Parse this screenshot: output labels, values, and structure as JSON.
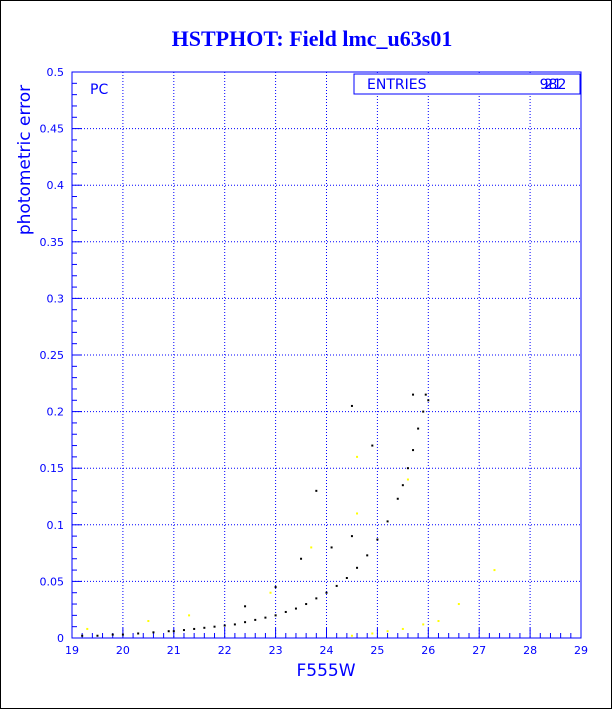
{
  "chart_data": {
    "type": "scatter",
    "title": "HSTPHOT: Field lmc_u63s01",
    "xlabel": "F555W",
    "ylabel": "photometric error",
    "corner_label": "PC",
    "stats_box": {
      "label": "ENTRIES",
      "values": [
        "982",
        "21"
      ]
    },
    "xlim": [
      19,
      29
    ],
    "ylim": [
      0,
      0.5
    ],
    "xticks": [
      "19",
      "20",
      "21",
      "22",
      "23",
      "24",
      "25",
      "26",
      "27",
      "28",
      "29"
    ],
    "yticks": [
      "0",
      "0.05",
      "0.1",
      "0.15",
      "0.2",
      "0.25",
      "0.3",
      "0.35",
      "0.4",
      "0.45",
      "0.5"
    ],
    "grid": true,
    "colors": {
      "title": "#0000ff",
      "frame": "#0000ff",
      "grid": "#0000ff",
      "labels": "#0000ff",
      "main_points": "#000000",
      "secondary_points": "#ffff00"
    },
    "series": [
      {
        "values": [
          [
            19.2,
            0.002
          ],
          [
            19.5,
            0.002
          ],
          [
            19.8,
            0.003
          ],
          [
            20.0,
            0.003
          ],
          [
            20.3,
            0.004
          ],
          [
            20.6,
            0.005
          ],
          [
            20.9,
            0.006
          ],
          [
            21.0,
            0.006
          ],
          [
            21.2,
            0.007
          ],
          [
            21.4,
            0.008
          ],
          [
            21.6,
            0.009
          ],
          [
            21.8,
            0.01
          ],
          [
            22.0,
            0.011
          ],
          [
            22.2,
            0.012
          ],
          [
            22.4,
            0.014
          ],
          [
            22.6,
            0.016
          ],
          [
            22.8,
            0.018
          ],
          [
            23.0,
            0.02
          ],
          [
            23.2,
            0.023
          ],
          [
            23.4,
            0.026
          ],
          [
            23.6,
            0.03
          ],
          [
            23.8,
            0.035
          ],
          [
            24.0,
            0.04
          ],
          [
            24.2,
            0.046
          ],
          [
            24.4,
            0.053
          ],
          [
            24.6,
            0.062
          ],
          [
            24.8,
            0.073
          ],
          [
            25.0,
            0.087
          ],
          [
            25.2,
            0.103
          ],
          [
            25.4,
            0.123
          ],
          [
            25.5,
            0.135
          ],
          [
            25.6,
            0.15
          ],
          [
            25.7,
            0.166
          ],
          [
            25.8,
            0.185
          ],
          [
            25.9,
            0.2
          ],
          [
            26.0,
            0.21
          ],
          [
            22.4,
            0.028
          ],
          [
            23.0,
            0.045
          ],
          [
            23.5,
            0.07
          ],
          [
            23.8,
            0.13
          ],
          [
            24.5,
            0.205
          ],
          [
            24.9,
            0.17
          ],
          [
            24.1,
            0.08
          ],
          [
            24.5,
            0.09
          ],
          [
            25.7,
            0.215
          ],
          [
            25.95,
            0.215
          ]
        ]
      },
      {
        "values": [
          [
            19.3,
            0.008
          ],
          [
            20.5,
            0.015
          ],
          [
            21.3,
            0.02
          ],
          [
            22.9,
            0.04
          ],
          [
            24.5,
            0.002
          ],
          [
            24.9,
            0.004
          ],
          [
            25.2,
            0.006
          ],
          [
            25.5,
            0.008
          ],
          [
            25.9,
            0.012
          ],
          [
            26.2,
            0.015
          ],
          [
            26.6,
            0.03
          ],
          [
            27.3,
            0.06
          ],
          [
            24.6,
            0.16
          ],
          [
            25.6,
            0.14
          ],
          [
            24.6,
            0.11
          ],
          [
            23.7,
            0.08
          ]
        ]
      }
    ]
  }
}
